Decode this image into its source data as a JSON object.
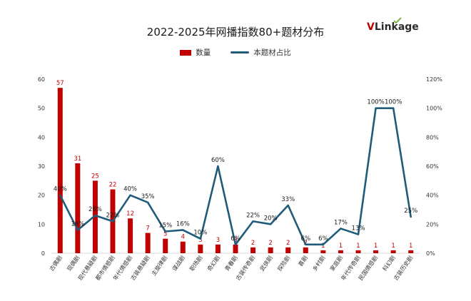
{
  "logo": {
    "prefix": "V",
    "rest": "Linkage"
  },
  "colors": {
    "bar": "#c00000",
    "line": "#1f5c7a",
    "axis": "#d9d9d9",
    "label_red": "#c00000",
    "text": "#333333"
  },
  "chart_data": {
    "type": "bar",
    "title": "2022-2025年网播指数80+题材分布",
    "legend_position": "top",
    "grid": false,
    "categories": [
      "古偶剧",
      "现偶剧",
      "现代悬疑剧",
      "都市情感剧",
      "年代情感剧",
      "古装悬疑剧",
      "主旋律剧",
      "谍战剧",
      "职场剧",
      "奇幻剧",
      "青春剧",
      "古装传奇剧",
      "武侠剧",
      "探险剧",
      "喜剧",
      "乡村剧",
      "家庭剧",
      "年代传奇剧",
      "民国情感剧",
      "科幻剧",
      "古装历史剧"
    ],
    "series": [
      {
        "name": "数量",
        "type": "bar",
        "axis": "left",
        "values": [
          57,
          31,
          25,
          22,
          12,
          7,
          5,
          4,
          3,
          3,
          3,
          2,
          2,
          2,
          2,
          1,
          1,
          1,
          1,
          1,
          1
        ],
        "labels": [
          "57",
          "31",
          "25",
          "22",
          "12",
          "7",
          "5",
          "4",
          "3",
          "3",
          "3",
          "2",
          "2",
          "2",
          "2",
          "1",
          "1",
          "1",
          "1",
          "1",
          "1"
        ]
      },
      {
        "name": "本题材占比",
        "type": "line",
        "axis": "right",
        "values": [
          40,
          16,
          26,
          22,
          40,
          35,
          15,
          16,
          10,
          60,
          6,
          22,
          20,
          33,
          6,
          6,
          17,
          13,
          100,
          100,
          25
        ],
        "labels": [
          "40%",
          "16%",
          "26%",
          "22%",
          "40%",
          "35%",
          "15%",
          "16%",
          "10%",
          "60%",
          "6%",
          "22%",
          "20%",
          "33%",
          "6%",
          "6%",
          "17%",
          "13%",
          "100%",
          "100%",
          "25%"
        ]
      }
    ],
    "y_left": {
      "ylim": [
        0,
        60
      ],
      "ticks": [
        "0",
        "10",
        "20",
        "30",
        "40",
        "50",
        "60"
      ]
    },
    "y_right": {
      "ylim": [
        0,
        120
      ],
      "ticks": [
        "0%",
        "20%",
        "40%",
        "60%",
        "80%",
        "100%",
        "120%"
      ]
    }
  }
}
